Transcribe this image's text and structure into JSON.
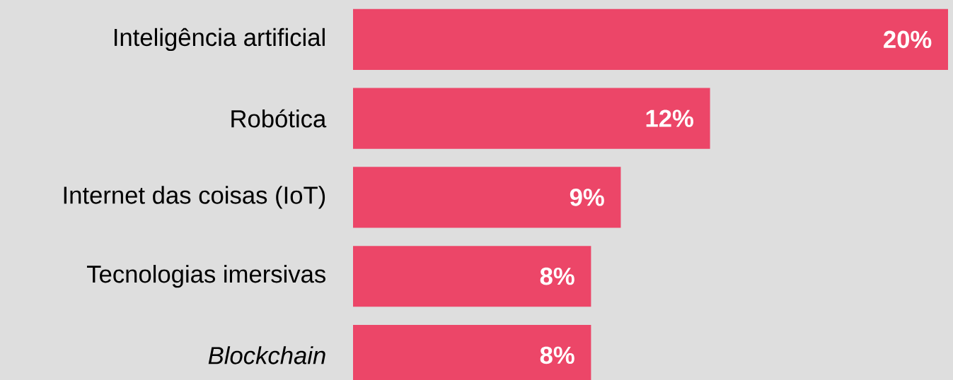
{
  "chart_data": {
    "type": "bar",
    "orientation": "horizontal",
    "categories": [
      "Inteligência artificial",
      "Robótica",
      "Internet das coisas (IoT)",
      "Tecnologias imersivas",
      "*Blockchain*"
    ],
    "values": [
      20,
      12,
      9,
      8,
      8
    ],
    "value_labels": [
      "20%",
      "12%",
      "9%",
      "8%",
      "8%"
    ],
    "color": "#ec4668"
  }
}
